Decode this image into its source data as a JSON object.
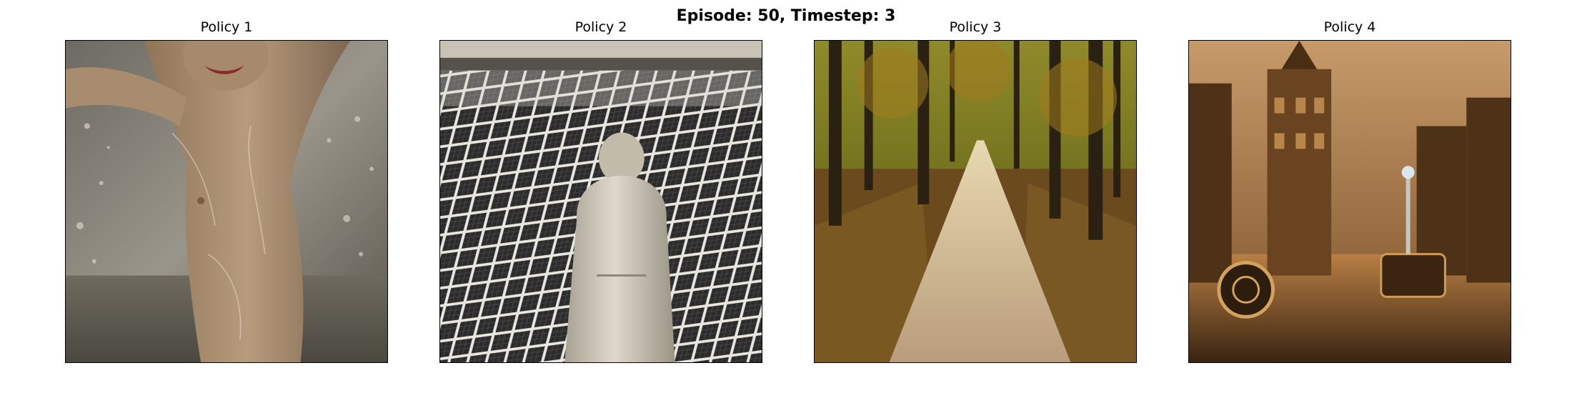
{
  "figure": {
    "title": "Episode: 50, Timestep: 3"
  },
  "panels": [
    {
      "title": "Policy 1",
      "content": "water-splash-figure-image"
    },
    {
      "title": "Policy 2",
      "content": "solar-panels-woman-image"
    },
    {
      "title": "Policy 3",
      "content": "forest-path-image"
    },
    {
      "title": "Policy 4",
      "content": "steampunk-city-image"
    }
  ]
}
